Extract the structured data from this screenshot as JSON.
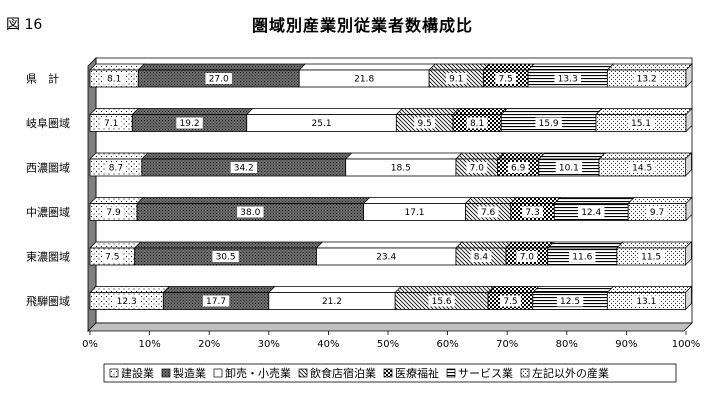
{
  "figure_label": "図 16",
  "chart_data": {
    "type": "bar",
    "orientation": "horizontal",
    "stacked": "percent",
    "title": "圏域別産業別従業者数構成比",
    "xlabel": "",
    "ylabel": "",
    "xlim": [
      0,
      100
    ],
    "x_ticks": [
      "0%",
      "10%",
      "20%",
      "30%",
      "40%",
      "50%",
      "60%",
      "70%",
      "80%",
      "90%",
      "100%"
    ],
    "categories": [
      "県　計",
      "岐阜圏域",
      "西濃圏域",
      "中濃圏域",
      "東濃圏域",
      "飛騨圏域"
    ],
    "series": [
      {
        "name": "建設業",
        "values": [
          8.1,
          7.1,
          8.7,
          7.9,
          7.5,
          12.3
        ]
      },
      {
        "name": "製造業",
        "values": [
          27.0,
          19.2,
          34.2,
          38.0,
          30.5,
          17.7
        ]
      },
      {
        "name": "卸売・小売業",
        "values": [
          21.8,
          25.1,
          18.5,
          17.1,
          23.4,
          21.2
        ]
      },
      {
        "name": "飲食店宿泊業",
        "values": [
          9.1,
          9.5,
          7.0,
          7.6,
          8.4,
          15.6
        ]
      },
      {
        "name": "医療福祉",
        "values": [
          7.5,
          8.1,
          6.9,
          7.3,
          7.0,
          7.5
        ]
      },
      {
        "name": "サービス業",
        "values": [
          13.3,
          15.9,
          10.1,
          12.4,
          11.6,
          12.5
        ]
      },
      {
        "name": "左記以外の産業",
        "values": [
          13.2,
          15.1,
          14.5,
          9.7,
          11.5,
          13.1
        ]
      }
    ],
    "legend_position": "bottom",
    "grid": false
  }
}
